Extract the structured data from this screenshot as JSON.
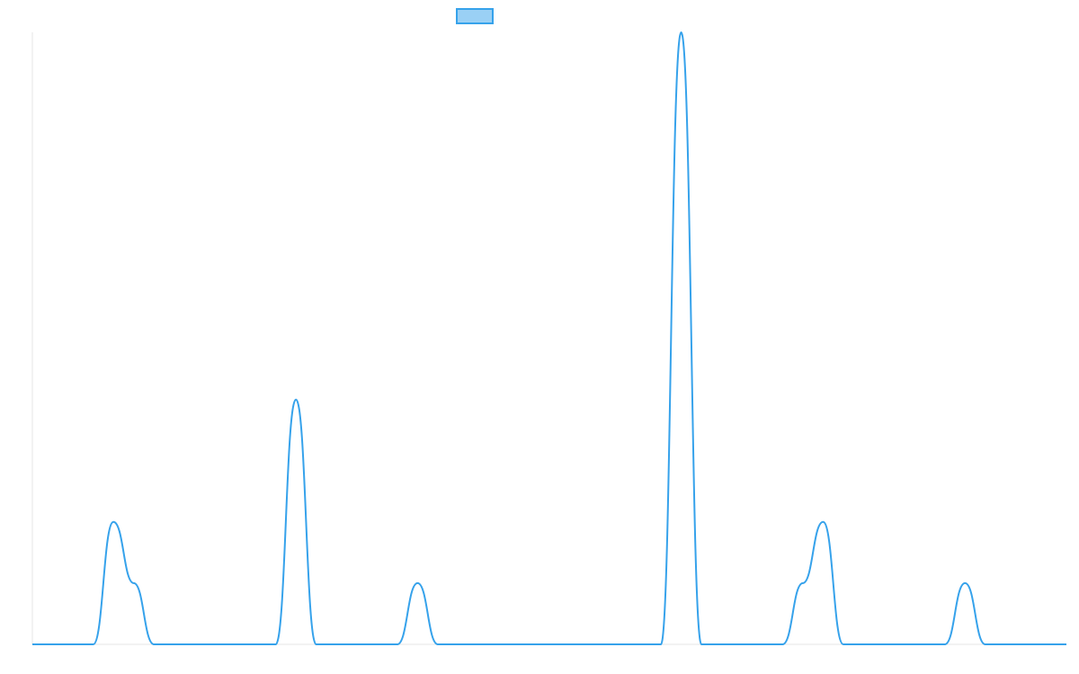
{
  "chart_data": {
    "type": "line",
    "title": "",
    "xlabel": "",
    "ylabel": "",
    "legend": {
      "position": "top-center",
      "entries": [
        {
          "name": ""
        }
      ]
    },
    "grid": false,
    "xlim": [
      0,
      51
    ],
    "ylim": [
      0,
      10
    ],
    "series": [
      {
        "name": "",
        "color": "#36a2eb",
        "fill_color": "#9ad0f5",
        "x": [
          0,
          1,
          2,
          3,
          4,
          5,
          6,
          7,
          8,
          9,
          10,
          11,
          12,
          13,
          14,
          15,
          16,
          17,
          18,
          19,
          20,
          21,
          22,
          23,
          24,
          25,
          26,
          27,
          28,
          29,
          30,
          31,
          32,
          33,
          34,
          35,
          36,
          37,
          38,
          39,
          40,
          41,
          42,
          43,
          44,
          45,
          46,
          47,
          48,
          49,
          50,
          51
        ],
        "y": [
          0,
          0,
          0,
          0,
          2,
          1,
          0,
          0,
          0,
          0,
          0,
          0,
          0,
          4,
          0,
          0,
          0,
          0,
          0,
          1,
          0,
          0,
          0,
          0,
          0,
          0,
          0,
          0,
          0,
          0,
          0,
          0,
          10,
          0,
          0,
          0,
          0,
          0,
          1,
          2,
          0,
          0,
          0,
          0,
          0,
          0,
          1,
          0,
          0,
          0,
          0,
          0
        ]
      }
    ]
  }
}
